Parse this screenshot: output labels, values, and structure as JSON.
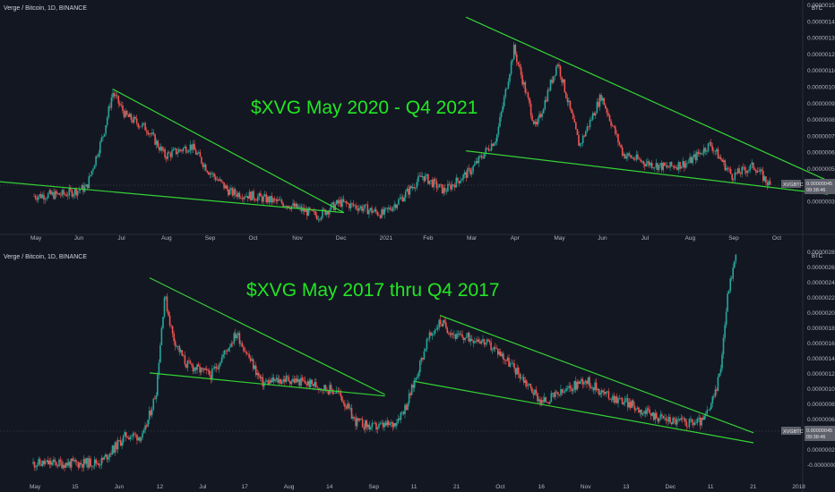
{
  "chart_data": [
    {
      "type": "candlestick",
      "title": "Verge / Bitcoin, 1D, BINANCE",
      "annotation": "$XVG May 2020 - Q4 2021",
      "unit": "BTC",
      "price_tag": "0.00000045",
      "price_tag_name": "XVGBTC",
      "countdown": "09:38:46",
      "y_ticks": [
        "0.00000150",
        "0.00000140",
        "0.00000130",
        "0.00000120",
        "0.00000110",
        "0.00000100",
        "0.00000090",
        "0.00000080",
        "0.00000070",
        "0.00000060",
        "0.00000050",
        "0.00000040",
        "0.00000030"
      ],
      "x_ticks": [
        "May",
        "Jun",
        "Jul",
        "Aug",
        "Sep",
        "Oct",
        "Nov",
        "Dec",
        "2021",
        "Feb",
        "Mar",
        "Apr",
        "May",
        "Jun",
        "Jul",
        "Aug",
        "Sep",
        "Oct"
      ],
      "ylim": [
        2.5e-07,
        1.53e-06
      ],
      "series": [
        {
          "x": 0.0,
          "y": 4e-07
        },
        {
          "x": 0.7,
          "y": 4.1e-07
        },
        {
          "x": 1.2,
          "y": 4.5e-07
        },
        {
          "x": 1.6,
          "y": 7.8e-07
        },
        {
          "x": 1.8,
          "y": 1.02e-06
        },
        {
          "x": 2.1,
          "y": 8.8e-07
        },
        {
          "x": 2.6,
          "y": 8e-07
        },
        {
          "x": 3.0,
          "y": 6.4e-07
        },
        {
          "x": 3.6,
          "y": 7e-07
        },
        {
          "x": 4.0,
          "y": 5.5e-07
        },
        {
          "x": 4.5,
          "y": 4.2e-07
        },
        {
          "x": 5.0,
          "y": 4e-07
        },
        {
          "x": 5.8,
          "y": 3.5e-07
        },
        {
          "x": 6.5,
          "y": 2.8e-07
        },
        {
          "x": 7.0,
          "y": 3.6e-07
        },
        {
          "x": 7.5,
          "y": 3.3e-07
        },
        {
          "x": 8.0,
          "y": 2.9e-07
        },
        {
          "x": 8.4,
          "y": 3.8e-07
        },
        {
          "x": 8.9,
          "y": 5.2e-07
        },
        {
          "x": 9.4,
          "y": 4.3e-07
        },
        {
          "x": 10.0,
          "y": 5.5e-07
        },
        {
          "x": 10.6,
          "y": 7.5e-07
        },
        {
          "x": 11.0,
          "y": 1.28e-06
        },
        {
          "x": 11.5,
          "y": 8e-07
        },
        {
          "x": 12.0,
          "y": 1.2e-06
        },
        {
          "x": 12.5,
          "y": 7e-07
        },
        {
          "x": 13.0,
          "y": 1e-06
        },
        {
          "x": 13.5,
          "y": 6.5e-07
        },
        {
          "x": 14.0,
          "y": 6e-07
        },
        {
          "x": 14.5,
          "y": 5.7e-07
        },
        {
          "x": 15.0,
          "y": 6e-07
        },
        {
          "x": 15.5,
          "y": 7.1e-07
        },
        {
          "x": 16.0,
          "y": 5.2e-07
        },
        {
          "x": 16.5,
          "y": 5.8e-07
        },
        {
          "x": 16.9,
          "y": 4.5e-07
        }
      ],
      "trendlines": [
        {
          "x1": 1.8,
          "y1": 1.04e-06,
          "x2": 7.1,
          "y2": 3e-07
        },
        {
          "x1": -1.0,
          "y1": 4.9e-07,
          "x2": 7.1,
          "y2": 3e-07
        },
        {
          "x1": 9.9,
          "y1": 1.47e-06,
          "x2": 18.2,
          "y2": 4.9e-07
        },
        {
          "x1": 9.9,
          "y1": 6.7e-07,
          "x2": 18.2,
          "y2": 4.1e-07
        }
      ]
    },
    {
      "type": "candlestick",
      "title": "Verge / Bitcoin, 1D, BINANCE",
      "annotation": "$XVG May 2017 thru Q4 2017",
      "unit": "BTC",
      "price_tag": "0.00000045",
      "price_tag_name": "XVGBTC",
      "countdown": "09:38:46",
      "y_ticks": [
        "0.00000280",
        "0.00000260",
        "0.00000240",
        "0.00000220",
        "0.00000200",
        "0.00000180",
        "0.00000160",
        "0.00000140",
        "0.00000120",
        "0.00000100",
        "0.00000080",
        "0.00000060",
        "0.00000040",
        "0.00000020",
        "-0.00000000"
      ],
      "x_ticks": [
        "May",
        "15",
        "Jun",
        "12",
        "Jul",
        "17",
        "Aug",
        "14",
        "Sep",
        "11",
        "21",
        "Oct",
        "16",
        "Nov",
        "13",
        "Dec",
        "11",
        "21",
        "2018"
      ],
      "ylim": [
        -3e-08,
        2.85e-06
      ],
      "series": [
        {
          "x": 0.0,
          "y": 5e-08
        },
        {
          "x": 1.0,
          "y": 5e-08
        },
        {
          "x": 1.6,
          "y": 7e-08
        },
        {
          "x": 2.2,
          "y": 4.2e-07
        },
        {
          "x": 2.6,
          "y": 4e-07
        },
        {
          "x": 2.9,
          "y": 9.8e-07
        },
        {
          "x": 3.1,
          "y": 2.25e-06
        },
        {
          "x": 3.3,
          "y": 1.7e-06
        },
        {
          "x": 3.6,
          "y": 1.35e-06
        },
        {
          "x": 4.2,
          "y": 1.2e-06
        },
        {
          "x": 4.8,
          "y": 1.75e-06
        },
        {
          "x": 5.4,
          "y": 1.1e-06
        },
        {
          "x": 6.0,
          "y": 1.15e-06
        },
        {
          "x": 6.6,
          "y": 1.08e-06
        },
        {
          "x": 7.2,
          "y": 9.8e-07
        },
        {
          "x": 7.6,
          "y": 6e-07
        },
        {
          "x": 8.0,
          "y": 5.2e-07
        },
        {
          "x": 8.5,
          "y": 5.6e-07
        },
        {
          "x": 8.8,
          "y": 8e-07
        },
        {
          "x": 9.0,
          "y": 1.12e-06
        },
        {
          "x": 9.3,
          "y": 1.65e-06
        },
        {
          "x": 9.6,
          "y": 1.9e-06
        },
        {
          "x": 10.0,
          "y": 1.7e-06
        },
        {
          "x": 10.5,
          "y": 1.68e-06
        },
        {
          "x": 11.0,
          "y": 1.5e-06
        },
        {
          "x": 11.5,
          "y": 1.2e-06
        },
        {
          "x": 12.0,
          "y": 8.5e-07
        },
        {
          "x": 12.6,
          "y": 1e-06
        },
        {
          "x": 13.0,
          "y": 1.15e-06
        },
        {
          "x": 13.5,
          "y": 9.5e-07
        },
        {
          "x": 14.0,
          "y": 8.5e-07
        },
        {
          "x": 14.5,
          "y": 7e-07
        },
        {
          "x": 15.0,
          "y": 6.2e-07
        },
        {
          "x": 15.5,
          "y": 5.8e-07
        },
        {
          "x": 15.8,
          "y": 6e-07
        },
        {
          "x": 16.0,
          "y": 8e-07
        },
        {
          "x": 16.2,
          "y": 1.2e-06
        },
        {
          "x": 16.4,
          "y": 2.3e-06
        },
        {
          "x": 16.6,
          "y": 2.8e-06
        }
      ],
      "trendlines": [
        {
          "x1": 2.75,
          "y1": 2.47e-06,
          "x2": 8.3,
          "y2": 9.5e-07
        },
        {
          "x1": 2.75,
          "y1": 1.23e-06,
          "x2": 8.3,
          "y2": 9.3e-07
        },
        {
          "x1": 9.6,
          "y1": 1.98e-06,
          "x2": 17.0,
          "y2": 4.5e-07
        },
        {
          "x1": 9.0,
          "y1": 1.12e-06,
          "x2": 17.0,
          "y2": 3.2e-07
        }
      ]
    }
  ]
}
